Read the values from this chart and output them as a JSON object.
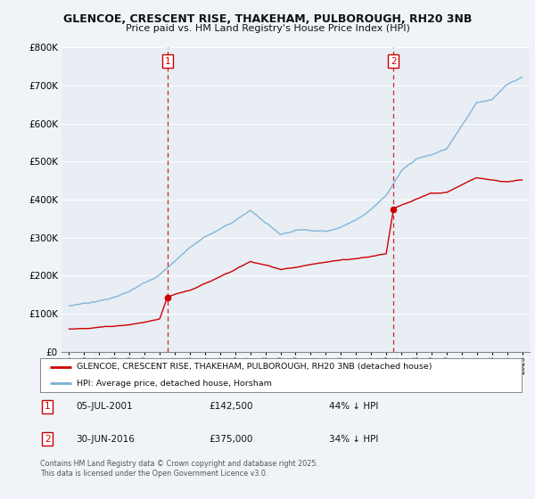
{
  "title1": "GLENCOE, CRESCENT RISE, THAKEHAM, PULBOROUGH, RH20 3NB",
  "title2": "Price paid vs. HM Land Registry's House Price Index (HPI)",
  "ylim": [
    0,
    800000
  ],
  "xlim_start": 1994.5,
  "xlim_end": 2025.5,
  "background_color": "#f0f4f8",
  "plot_bg_color": "#e8eef4",
  "grid_color": "#ffffff",
  "legend_label_red": "GLENCOE, CRESCENT RISE, THAKEHAM, PULBOROUGH, RH20 3NB (detached house)",
  "legend_label_blue": "HPI: Average price, detached house, Horsham",
  "annotation1_date": "05-JUL-2001",
  "annotation1_price": "£142,500",
  "annotation1_hpi": "44% ↓ HPI",
  "annotation2_date": "30-JUN-2016",
  "annotation2_price": "£375,000",
  "annotation2_hpi": "34% ↓ HPI",
  "footer": "Contains HM Land Registry data © Crown copyright and database right 2025.\nThis data is licensed under the Open Government Licence v3.0.",
  "red_color": "#cc0000",
  "blue_color": "#7ab0d4",
  "vline_color": "#cc0000",
  "marker1_x": 2001.51,
  "marker1_y": 142500,
  "marker2_x": 2016.49,
  "marker2_y": 375000,
  "hpi_years": [
    1995,
    1996,
    1997,
    1998,
    1999,
    2000,
    2001,
    2002,
    2003,
    2004,
    2005,
    2006,
    2007,
    2008,
    2009,
    2010,
    2011,
    2012,
    2013,
    2014,
    2015,
    2016,
    2017,
    2018,
    2019,
    2020,
    2021,
    2022,
    2023,
    2024,
    2025
  ],
  "hpi_vals": [
    120000,
    128000,
    135000,
    145000,
    158000,
    180000,
    205000,
    240000,
    278000,
    305000,
    325000,
    348000,
    375000,
    345000,
    315000,
    328000,
    330000,
    328000,
    340000,
    360000,
    390000,
    430000,
    490000,
    520000,
    530000,
    545000,
    610000,
    670000,
    680000,
    720000,
    740000
  ],
  "red_years": [
    1995,
    1996,
    1997,
    1998,
    1999,
    2000,
    2001.0,
    2001.51,
    2001.52,
    2002,
    2003,
    2004,
    2005,
    2006,
    2007,
    2008,
    2009,
    2010,
    2011,
    2012,
    2013,
    2014,
    2015,
    2016.0,
    2016.49,
    2016.5,
    2017,
    2018,
    2019,
    2020,
    2021,
    2022,
    2023,
    2024,
    2025
  ],
  "red_vals": [
    60000,
    62000,
    65000,
    68000,
    72000,
    78000,
    85000,
    142500,
    142500,
    148000,
    158000,
    175000,
    195000,
    215000,
    235000,
    225000,
    215000,
    220000,
    228000,
    232000,
    238000,
    242000,
    248000,
    255000,
    375000,
    375000,
    385000,
    400000,
    415000,
    415000,
    435000,
    455000,
    450000,
    445000,
    450000
  ]
}
